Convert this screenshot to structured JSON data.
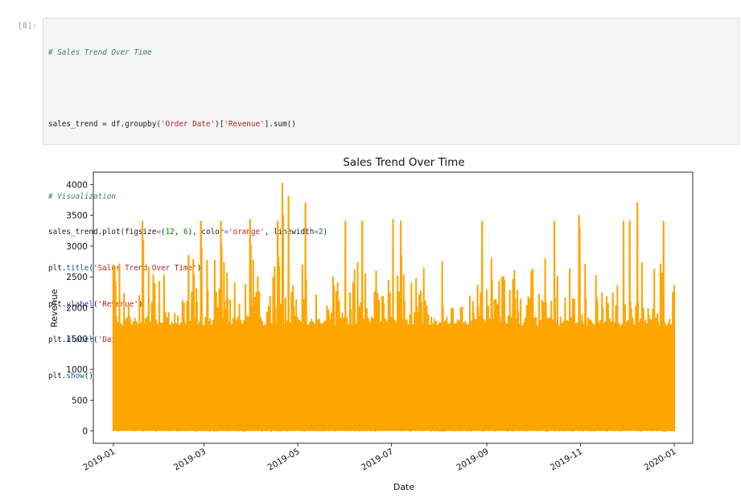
{
  "cell": {
    "prompt": "[8]:",
    "code": {
      "comment1": "# Sales Trend Over Time",
      "line_groupby": {
        "a": "sales_trend = df.groupby(",
        "s1": "'Order Date'",
        "b": ")[",
        "s2": "'Revenue'",
        "c": "].sum()"
      },
      "comment2": "# Visualization",
      "line_plot": {
        "a": "sales_trend.plot(figsize",
        "eq1": "=",
        "b": "(",
        "n1": "12",
        "c": ", ",
        "n2": "6",
        "d": "), color",
        "eq2": "=",
        "s1": "'orange'",
        "e": ", linewidth",
        "eq3": "=",
        "n3": "2",
        "f": ")"
      },
      "line_title": {
        "a": "plt.",
        "fn": "title",
        "b": "(",
        "s": "'Sales Trend Over Time'",
        "c": ")"
      },
      "line_ylabel": {
        "a": "plt.",
        "fn": "ylabel",
        "b": "(",
        "s": "'Revenue'",
        "c": ")"
      },
      "line_xlabel": {
        "a": "plt.",
        "fn": "xlabel",
        "b": "(",
        "s": "'Date'",
        "c": ")"
      },
      "line_show": {
        "a": "plt.",
        "fn": "show",
        "b": "()"
      }
    }
  },
  "chart_data": {
    "type": "line",
    "title": "Sales Trend Over Time",
    "xlabel": "Date",
    "ylabel": "Revenue",
    "color": "#ffa500",
    "ylim": [
      -200,
      4200
    ],
    "xlim": [
      "2018-12-19",
      "2020-01-13"
    ],
    "yticks": [
      0,
      500,
      1000,
      1500,
      2000,
      2500,
      3000,
      3500,
      4000
    ],
    "xticks": [
      {
        "date": "2019-01-01",
        "label": "2019-01"
      },
      {
        "date": "2019-03-01",
        "label": "2019-03"
      },
      {
        "date": "2019-05-01",
        "label": "2019-05"
      },
      {
        "date": "2019-07-01",
        "label": "2019-07"
      },
      {
        "date": "2019-09-01",
        "label": "2019-09"
      },
      {
        "date": "2019-11-01",
        "label": "2019-11"
      },
      {
        "date": "2020-01-01",
        "label": "2020-01"
      }
    ],
    "series": [
      {
        "x_start": "2019-01-01",
        "x_end": "2020-01-01",
        "values_min": 0,
        "peaks": [
          {
            "date": "2019-01-01",
            "value": 2700
          },
          {
            "date": "2019-01-20",
            "value": 3400
          },
          {
            "date": "2019-02-19",
            "value": 2850
          },
          {
            "date": "2019-02-27",
            "value": 3400
          },
          {
            "date": "2019-03-12",
            "value": 3400
          },
          {
            "date": "2019-03-31",
            "value": 3430
          },
          {
            "date": "2019-04-18",
            "value": 3400
          },
          {
            "date": "2019-04-21",
            "value": 4020
          },
          {
            "date": "2019-04-25",
            "value": 3800
          },
          {
            "date": "2019-05-06",
            "value": 3700
          },
          {
            "date": "2019-06-01",
            "value": 3400
          },
          {
            "date": "2019-06-12",
            "value": 3400
          },
          {
            "date": "2019-07-02",
            "value": 3430
          },
          {
            "date": "2019-07-07",
            "value": 3400
          },
          {
            "date": "2019-08-29",
            "value": 3400
          },
          {
            "date": "2019-10-15",
            "value": 3400
          },
          {
            "date": "2019-10-31",
            "value": 3500
          },
          {
            "date": "2019-11-29",
            "value": 3400
          },
          {
            "date": "2019-12-03",
            "value": 3400
          },
          {
            "date": "2019-12-08",
            "value": 3700
          },
          {
            "date": "2019-12-25",
            "value": 3400
          }
        ]
      }
    ]
  }
}
